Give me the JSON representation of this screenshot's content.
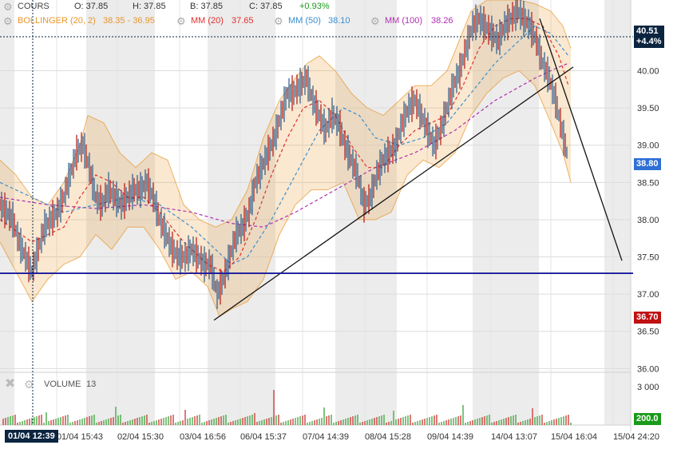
{
  "header": {
    "cours_label": "COURS",
    "open": "O: 37.85",
    "high": "H: 37.85",
    "low": "B: 37.85",
    "close": "C: 37.85",
    "change": "+0.93%",
    "bollinger": "BOLLINGER (20, 2)",
    "bollinger_values": "38.35 - 36.95",
    "mm20": "MM (20)",
    "mm20_value": "37.65",
    "mm50": "MM (50)",
    "mm50_value": "38.10",
    "mm100": "MM (100)",
    "mm100_value": "38.26"
  },
  "volume_panel": {
    "label": "VOLUME",
    "value": "13"
  },
  "price_tags": {
    "current": "40.51",
    "current_change": "+4.4%",
    "blue": "38.80",
    "red": "36.70",
    "volume": "200.0"
  },
  "cursor_date": "01/04 12:39",
  "colors": {
    "bollinger": "#e8962b",
    "mm20": "#e03030",
    "mm50": "#3a8fd0",
    "mm100": "#b030b0",
    "support": "#1a1a9c",
    "blue_tag": "#2f6fd6",
    "red_tag": "#c01010",
    "volume_tag": "#1a9a1a",
    "dark_tag": "#0b2440",
    "positive": "#1a9a1a"
  },
  "chart_data": {
    "type": "line",
    "y_ticks": [
      "40.00",
      "39.50",
      "39.00",
      "38.50",
      "38.00",
      "37.50",
      "37.00",
      "36.50",
      "36.00"
    ],
    "ylim": [
      35.95,
      40.95
    ],
    "x_tick_labels": [
      "01/04 15:43",
      "02/04 15:30",
      "03/04 16:56",
      "06/04 15:37",
      "07/04 14:39",
      "08/04 15:28",
      "09/04 14:39",
      "14/04 13:07",
      "15/04 16:04",
      "15/04 24:20"
    ],
    "volume_ticks": [
      "3 000"
    ],
    "support_level": 37.28,
    "price_path": [
      [
        0,
        38.2
      ],
      [
        8,
        38.1
      ],
      [
        16,
        38.0
      ],
      [
        24,
        37.7
      ],
      [
        32,
        37.5
      ],
      [
        40,
        37.3
      ],
      [
        48,
        37.6
      ],
      [
        56,
        37.9
      ],
      [
        64,
        38.0
      ],
      [
        72,
        38.1
      ],
      [
        80,
        38.3
      ],
      [
        88,
        38.6
      ],
      [
        96,
        38.9
      ],
      [
        104,
        39.0
      ],
      [
        112,
        38.7
      ],
      [
        120,
        38.3
      ],
      [
        128,
        38.2
      ],
      [
        136,
        38.4
      ],
      [
        144,
        38.3
      ],
      [
        152,
        38.2
      ],
      [
        160,
        38.3
      ],
      [
        168,
        38.4
      ],
      [
        176,
        38.4
      ],
      [
        184,
        38.5
      ],
      [
        192,
        38.3
      ],
      [
        200,
        38.0
      ],
      [
        208,
        37.8
      ],
      [
        216,
        37.6
      ],
      [
        224,
        37.5
      ],
      [
        232,
        37.5
      ],
      [
        240,
        37.6
      ],
      [
        248,
        37.5
      ],
      [
        256,
        37.4
      ],
      [
        264,
        37.4
      ],
      [
        272,
        37.0
      ],
      [
        280,
        37.2
      ],
      [
        288,
        37.5
      ],
      [
        296,
        37.8
      ],
      [
        304,
        37.9
      ],
      [
        312,
        38.1
      ],
      [
        320,
        38.5
      ],
      [
        328,
        38.7
      ],
      [
        336,
        38.9
      ],
      [
        344,
        39.1
      ],
      [
        352,
        39.4
      ],
      [
        360,
        39.7
      ],
      [
        368,
        39.7
      ],
      [
        376,
        39.8
      ],
      [
        384,
        39.9
      ],
      [
        392,
        39.6
      ],
      [
        400,
        39.4
      ],
      [
        408,
        39.2
      ],
      [
        416,
        39.4
      ],
      [
        424,
        39.3
      ],
      [
        432,
        39.0
      ],
      [
        440,
        38.8
      ],
      [
        448,
        38.6
      ],
      [
        456,
        38.2
      ],
      [
        464,
        38.3
      ],
      [
        472,
        38.6
      ],
      [
        480,
        38.8
      ],
      [
        488,
        38.9
      ],
      [
        496,
        39.0
      ],
      [
        504,
        39.3
      ],
      [
        512,
        39.5
      ],
      [
        520,
        39.6
      ],
      [
        528,
        39.4
      ],
      [
        536,
        39.2
      ],
      [
        544,
        39.0
      ],
      [
        552,
        39.2
      ],
      [
        560,
        39.5
      ],
      [
        568,
        39.8
      ],
      [
        576,
        40.0
      ],
      [
        584,
        40.3
      ],
      [
        592,
        40.6
      ],
      [
        600,
        40.7
      ],
      [
        608,
        40.6
      ],
      [
        616,
        40.5
      ],
      [
        624,
        40.4
      ],
      [
        632,
        40.6
      ],
      [
        640,
        40.7
      ],
      [
        648,
        40.8
      ],
      [
        656,
        40.7
      ],
      [
        664,
        40.6
      ],
      [
        672,
        40.4
      ],
      [
        680,
        40.1
      ],
      [
        688,
        39.9
      ],
      [
        696,
        39.6
      ],
      [
        704,
        39.2
      ],
      [
        712,
        38.8
      ]
    ],
    "bollinger_upper": [
      [
        0,
        38.8
      ],
      [
        20,
        38.6
      ],
      [
        40,
        38.3
      ],
      [
        60,
        38.2
      ],
      [
        80,
        38.5
      ],
      [
        100,
        39.0
      ],
      [
        110,
        39.4
      ],
      [
        130,
        39.3
      ],
      [
        150,
        38.9
      ],
      [
        170,
        38.7
      ],
      [
        190,
        38.9
      ],
      [
        210,
        38.8
      ],
      [
        230,
        38.2
      ],
      [
        250,
        38.0
      ],
      [
        270,
        37.9
      ],
      [
        290,
        38.0
      ],
      [
        310,
        38.4
      ],
      [
        330,
        39.1
      ],
      [
        350,
        39.6
      ],
      [
        370,
        39.9
      ],
      [
        385,
        40.1
      ],
      [
        400,
        40.2
      ],
      [
        420,
        40.0
      ],
      [
        440,
        39.7
      ],
      [
        460,
        39.5
      ],
      [
        480,
        39.4
      ],
      [
        500,
        39.6
      ],
      [
        520,
        39.8
      ],
      [
        540,
        39.8
      ],
      [
        560,
        40.0
      ],
      [
        575,
        40.4
      ],
      [
        590,
        40.8
      ],
      [
        610,
        40.95
      ],
      [
        630,
        40.95
      ],
      [
        650,
        40.95
      ],
      [
        670,
        40.9
      ],
      [
        690,
        40.8
      ],
      [
        705,
        40.6
      ],
      [
        715,
        40.3
      ]
    ],
    "bollinger_lower": [
      [
        0,
        37.7
      ],
      [
        20,
        37.3
      ],
      [
        40,
        36.9
      ],
      [
        60,
        37.2
      ],
      [
        80,
        37.4
      ],
      [
        100,
        37.5
      ],
      [
        120,
        37.8
      ],
      [
        140,
        37.6
      ],
      [
        160,
        37.9
      ],
      [
        180,
        37.9
      ],
      [
        200,
        37.6
      ],
      [
        220,
        37.2
      ],
      [
        240,
        37.3
      ],
      [
        260,
        37.1
      ],
      [
        275,
        36.7
      ],
      [
        290,
        36.8
      ],
      [
        310,
        36.9
      ],
      [
        330,
        37.2
      ],
      [
        350,
        37.8
      ],
      [
        370,
        38.2
      ],
      [
        390,
        38.4
      ],
      [
        410,
        38.4
      ],
      [
        430,
        38.5
      ],
      [
        450,
        38.0
      ],
      [
        470,
        38.0
      ],
      [
        490,
        38.1
      ],
      [
        510,
        38.6
      ],
      [
        530,
        38.8
      ],
      [
        550,
        38.7
      ],
      [
        570,
        38.9
      ],
      [
        590,
        39.4
      ],
      [
        610,
        39.7
      ],
      [
        630,
        39.9
      ],
      [
        650,
        40.0
      ],
      [
        670,
        39.8
      ],
      [
        690,
        39.3
      ],
      [
        705,
        38.9
      ],
      [
        715,
        38.5
      ]
    ],
    "mm20": [
      [
        0,
        38.0
      ],
      [
        40,
        37.7
      ],
      [
        80,
        37.9
      ],
      [
        100,
        38.3
      ],
      [
        120,
        38.6
      ],
      [
        140,
        38.5
      ],
      [
        160,
        38.3
      ],
      [
        180,
        38.3
      ],
      [
        200,
        38.1
      ],
      [
        230,
        37.7
      ],
      [
        260,
        37.4
      ],
      [
        280,
        37.3
      ],
      [
        300,
        37.5
      ],
      [
        320,
        38.0
      ],
      [
        340,
        38.6
      ],
      [
        360,
        39.1
      ],
      [
        380,
        39.5
      ],
      [
        400,
        39.6
      ],
      [
        420,
        39.4
      ],
      [
        440,
        39.0
      ],
      [
        460,
        38.7
      ],
      [
        480,
        38.7
      ],
      [
        500,
        39.0
      ],
      [
        520,
        39.2
      ],
      [
        540,
        39.3
      ],
      [
        560,
        39.4
      ],
      [
        580,
        39.8
      ],
      [
        600,
        40.3
      ],
      [
        620,
        40.6
      ],
      [
        640,
        40.7
      ],
      [
        660,
        40.7
      ],
      [
        680,
        40.6
      ],
      [
        700,
        40.2
      ],
      [
        712,
        39.8
      ]
    ],
    "mm50": [
      [
        0,
        38.5
      ],
      [
        40,
        38.3
      ],
      [
        80,
        38.1
      ],
      [
        120,
        38.2
      ],
      [
        160,
        38.3
      ],
      [
        200,
        38.2
      ],
      [
        240,
        37.9
      ],
      [
        270,
        37.6
      ],
      [
        290,
        37.4
      ],
      [
        310,
        37.5
      ],
      [
        340,
        38.0
      ],
      [
        370,
        38.6
      ],
      [
        400,
        39.2
      ],
      [
        430,
        39.5
      ],
      [
        450,
        39.4
      ],
      [
        470,
        39.1
      ],
      [
        500,
        39.0
      ],
      [
        530,
        39.1
      ],
      [
        560,
        39.3
      ],
      [
        590,
        39.7
      ],
      [
        620,
        40.1
      ],
      [
        650,
        40.4
      ],
      [
        670,
        40.6
      ],
      [
        690,
        40.5
      ],
      [
        712,
        40.2
      ]
    ],
    "mm100": [
      [
        0,
        38.3
      ],
      [
        60,
        38.2
      ],
      [
        120,
        38.15
      ],
      [
        180,
        38.2
      ],
      [
        240,
        38.1
      ],
      [
        290,
        37.95
      ],
      [
        330,
        37.9
      ],
      [
        370,
        38.1
      ],
      [
        420,
        38.4
      ],
      [
        470,
        38.7
      ],
      [
        520,
        38.9
      ],
      [
        570,
        39.2
      ],
      [
        620,
        39.6
      ],
      [
        670,
        39.9
      ],
      [
        700,
        40.05
      ],
      [
        712,
        40.1
      ]
    ],
    "trendlines": [
      {
        "from": [
          268,
          36.65
        ],
        "to": [
          718,
          40.05
        ]
      },
      {
        "from": [
          676,
          40.7
        ],
        "to": [
          779,
          37.45
        ]
      }
    ]
  }
}
